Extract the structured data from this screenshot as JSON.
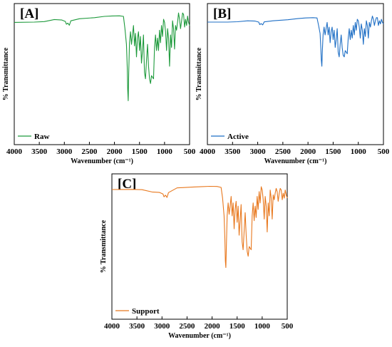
{
  "chart_data": [
    {
      "type": "line",
      "panel_label": "[A]",
      "xlabel": "Wavenumber (cm⁻¹)",
      "ylabel": "% Transmittance",
      "xlim": [
        4000,
        500
      ],
      "x_reversed": true,
      "xticks": [
        "4000",
        "3500",
        "3000",
        "2500",
        "2000",
        "1500",
        "1000",
        "500"
      ],
      "yticks_shown": false,
      "legend_position": "bottom-left",
      "series": [
        {
          "name": "Raw",
          "color": "#1e9a3c",
          "x": [
            4000,
            3600,
            3400,
            3200,
            3050,
            2980,
            2960,
            2930,
            2900,
            2870,
            2700,
            2400,
            2200,
            2050,
            1900,
            1820,
            1790,
            1760,
            1745,
            1735,
            1725,
            1715,
            1700,
            1680,
            1660,
            1640,
            1620,
            1600,
            1580,
            1560,
            1540,
            1520,
            1500,
            1480,
            1460,
            1440,
            1420,
            1400,
            1380,
            1360,
            1340,
            1320,
            1300,
            1280,
            1260,
            1240,
            1220,
            1200,
            1180,
            1160,
            1140,
            1120,
            1100,
            1080,
            1060,
            1040,
            1020,
            1000,
            980,
            960,
            940,
            920,
            900,
            880,
            860,
            840,
            820,
            800,
            780,
            760,
            740,
            720,
            700,
            680,
            660,
            640,
            620,
            600,
            580,
            560,
            540,
            520,
            500
          ],
          "y": [
            88,
            88.2,
            88.5,
            89.8,
            89.5,
            88.6,
            86.8,
            87.5,
            86.2,
            89,
            90.3,
            91,
            91.8,
            92.1,
            92.2,
            91.8,
            84,
            74,
            60,
            45,
            38,
            56,
            75,
            82,
            74,
            80,
            86,
            73,
            81,
            66,
            78,
            82,
            70,
            79,
            62,
            70,
            80,
            56,
            52,
            64,
            74,
            60,
            52,
            49,
            54,
            53,
            52,
            72,
            80,
            70,
            78,
            70,
            83,
            75,
            86,
            79,
            90,
            88,
            82,
            70,
            84,
            78,
            60,
            80,
            72,
            89,
            84,
            71,
            86,
            83,
            88,
            94,
            90,
            84,
            89,
            94,
            93,
            85,
            90,
            86,
            92,
            88,
            86
          ]
        }
      ]
    },
    {
      "type": "line",
      "panel_label": "[B]",
      "xlabel": "Wavenumber (cm⁻¹)",
      "ylabel": "% Transmittance",
      "xlim": [
        4000,
        500
      ],
      "x_reversed": true,
      "xticks": [
        "4000",
        "3500",
        "3000",
        "2500",
        "2000",
        "1500",
        "1000",
        "500"
      ],
      "yticks_shown": false,
      "legend_position": "bottom-left",
      "series": [
        {
          "name": "Active",
          "color": "#1f6fc5",
          "x": [
            4000,
            3600,
            3400,
            3200,
            3050,
            2980,
            2960,
            2930,
            2900,
            2870,
            2700,
            2400,
            2200,
            2050,
            1900,
            1820,
            1790,
            1760,
            1745,
            1735,
            1725,
            1715,
            1700,
            1680,
            1660,
            1640,
            1620,
            1600,
            1580,
            1560,
            1540,
            1520,
            1500,
            1480,
            1460,
            1440,
            1420,
            1400,
            1380,
            1360,
            1340,
            1320,
            1300,
            1280,
            1260,
            1240,
            1220,
            1200,
            1180,
            1160,
            1140,
            1120,
            1100,
            1080,
            1060,
            1040,
            1020,
            1000,
            980,
            960,
            940,
            920,
            900,
            880,
            860,
            840,
            820,
            800,
            780,
            760,
            740,
            720,
            700,
            680,
            660,
            640,
            620,
            600,
            580,
            560,
            540,
            520,
            500
          ],
          "y": [
            88.2,
            88.2,
            88.4,
            89,
            88.8,
            88.2,
            86.6,
            87.2,
            86.4,
            88.3,
            89,
            89.7,
            90.4,
            90.8,
            91,
            90.8,
            86,
            81,
            72,
            64,
            60,
            70,
            80,
            85,
            80,
            84,
            88,
            80,
            85,
            75,
            82,
            85,
            77,
            83,
            72,
            77,
            84,
            69,
            66,
            74,
            80,
            72,
            67,
            66,
            70,
            69,
            68,
            78,
            84,
            77,
            83,
            78,
            86,
            80,
            88,
            83,
            90,
            89,
            85,
            78,
            87,
            83,
            74,
            84,
            79,
            89,
            86,
            78,
            88,
            85,
            89,
            92,
            90,
            86,
            89,
            91,
            91,
            86,
            89,
            87,
            90,
            88,
            87
          ]
        }
      ]
    },
    {
      "type": "line",
      "panel_label": "[C]",
      "xlabel": "Wavenumber (cm⁻¹)",
      "ylabel": "% Transmittance",
      "xlim": [
        4000,
        500
      ],
      "x_reversed": true,
      "xticks": [
        "4000",
        "3500",
        "3000",
        "2500",
        "2000",
        "1500",
        "1000",
        "500"
      ],
      "yticks_shown": false,
      "legend_position": "bottom-left",
      "series": [
        {
          "name": "Support",
          "color": "#e8781e",
          "x": [
            4000,
            3600,
            3400,
            3200,
            3050,
            2980,
            2960,
            2930,
            2900,
            2870,
            2700,
            2400,
            2200,
            2050,
            1900,
            1820,
            1790,
            1760,
            1745,
            1735,
            1725,
            1715,
            1700,
            1680,
            1660,
            1640,
            1620,
            1600,
            1580,
            1560,
            1540,
            1520,
            1500,
            1480,
            1460,
            1440,
            1420,
            1400,
            1380,
            1360,
            1340,
            1320,
            1300,
            1280,
            1260,
            1240,
            1220,
            1200,
            1180,
            1160,
            1140,
            1120,
            1100,
            1080,
            1060,
            1040,
            1020,
            1000,
            980,
            960,
            940,
            920,
            900,
            880,
            860,
            840,
            820,
            800,
            780,
            760,
            740,
            720,
            700,
            680,
            660,
            640,
            620,
            600,
            580,
            560,
            540,
            520,
            500
          ],
          "y": [
            90.3,
            90.4,
            90.2,
            88.8,
            88.5,
            87.5,
            85.8,
            86.8,
            85.4,
            88.4,
            91.3,
            91.8,
            92.1,
            92.3,
            92.2,
            91.6,
            85,
            74,
            60,
            46,
            42,
            55,
            74,
            82,
            75,
            80,
            86,
            74,
            82,
            66,
            78,
            83,
            70,
            80,
            62,
            71,
            81,
            58,
            53,
            65,
            76,
            62,
            52,
            49,
            55,
            54,
            53,
            74,
            82,
            71,
            80,
            73,
            86,
            78,
            89,
            82,
            92,
            90,
            84,
            72,
            86,
            80,
            64,
            82,
            74,
            90,
            85,
            72,
            87,
            84,
            88,
            91,
            89,
            83,
            88,
            91,
            90,
            84,
            88,
            85,
            90,
            87,
            85
          ]
        }
      ]
    }
  ]
}
